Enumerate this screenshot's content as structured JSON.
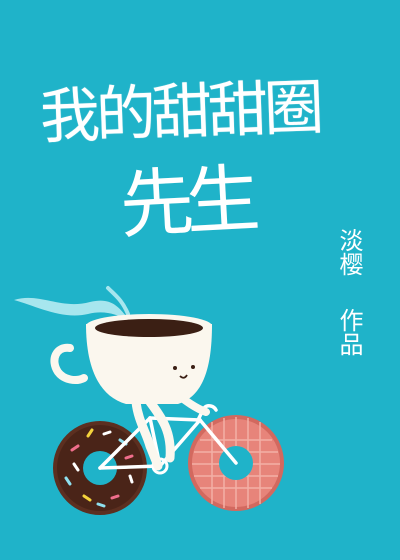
{
  "cover": {
    "background_color": "#1fb3c9",
    "title_line1": "我的甜甜圈",
    "title_line2": "先生",
    "author": "淡樱",
    "byline": "作品",
    "illustration": {
      "subject": "coffee-cup-riding-donut-bicycle",
      "colors": {
        "cup": "#fbf7ee",
        "coffee": "#3b1f14",
        "steam": "#bfeef5",
        "chocolate_donut": "#4a2418",
        "pink_donut": "#e7847a",
        "bike_frame": "#ffffff"
      }
    }
  }
}
